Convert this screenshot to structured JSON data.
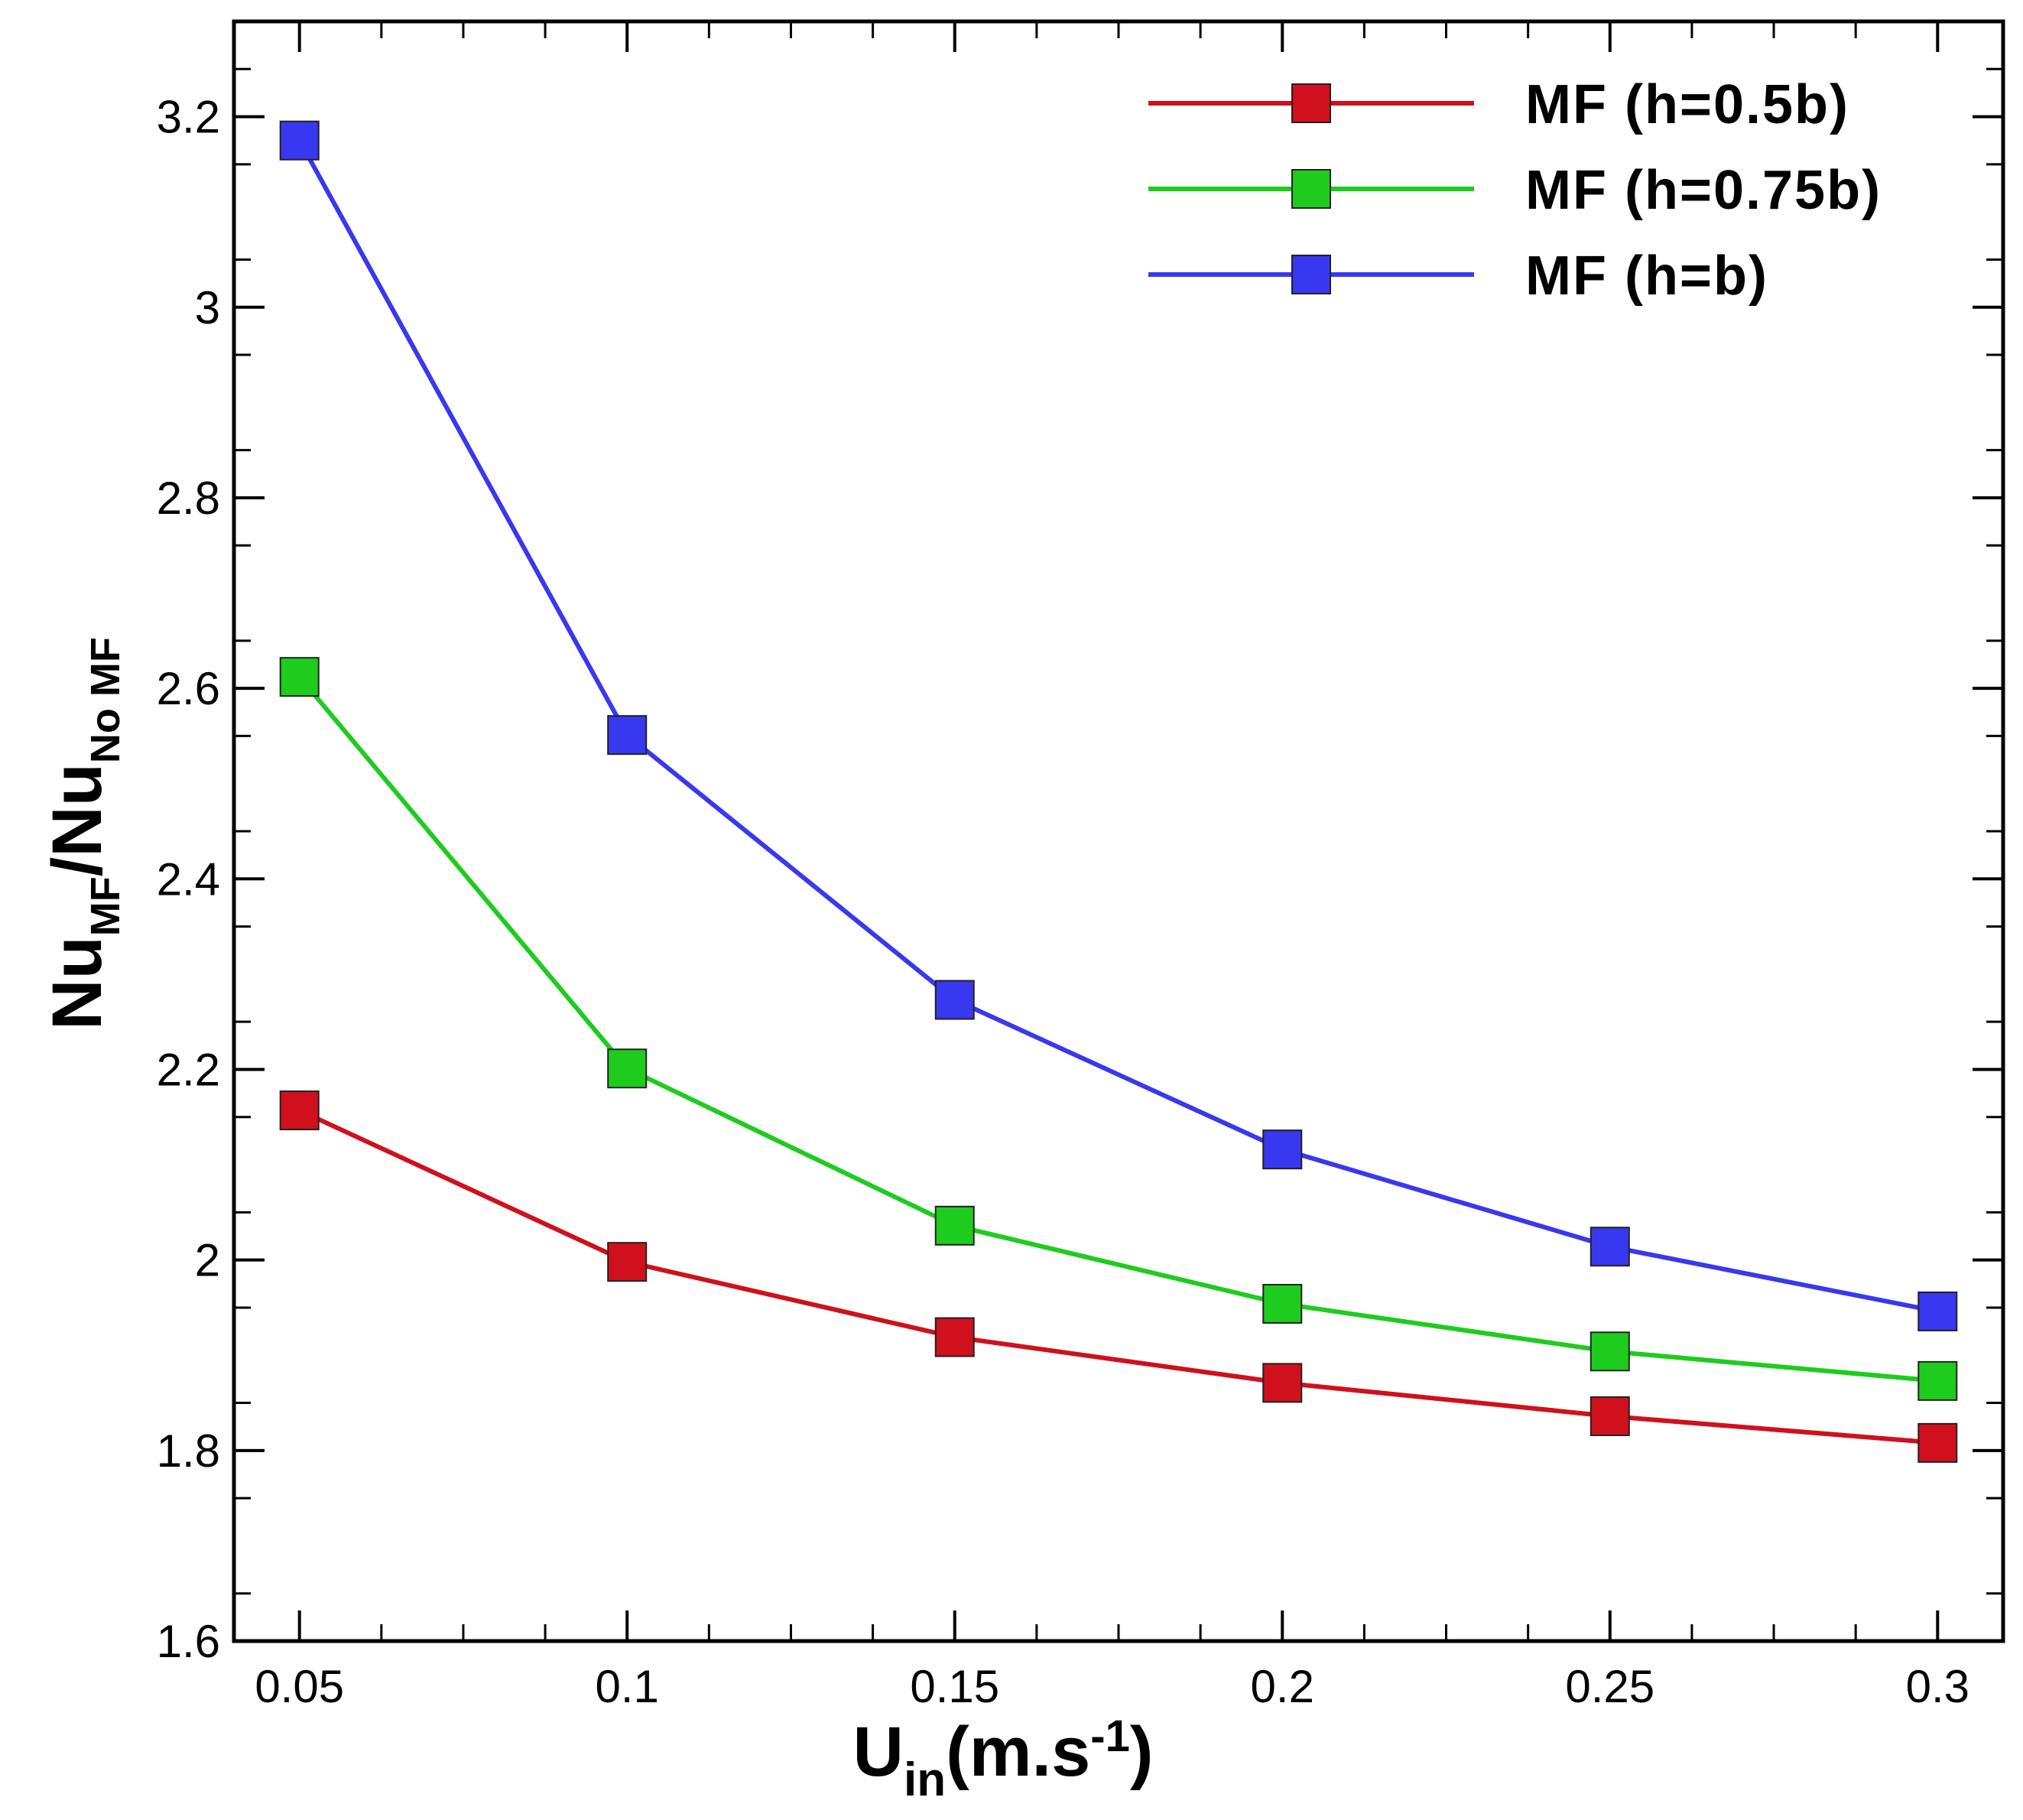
{
  "chart_data": {
    "type": "line",
    "x": [
      0.05,
      0.1,
      0.15,
      0.2,
      0.25,
      0.3
    ],
    "x_tick_labels": [
      "0.05",
      "0.1",
      "0.15",
      "0.2",
      "0.25",
      "0.3"
    ],
    "y_ticks": [
      1.6,
      1.8,
      2.0,
      2.2,
      2.4,
      2.6,
      2.8,
      3.0,
      3.2
    ],
    "y_tick_labels": [
      "1.6",
      "1.8",
      "2",
      "2.2",
      "2.4",
      "2.6",
      "2.8",
      "3",
      "3.2"
    ],
    "xlim": [
      0.04,
      0.31
    ],
    "ylim": [
      1.6,
      3.3
    ],
    "xlabel": {
      "main": "U",
      "sub": "in",
      "unit_open": "(m.s",
      "unit_sup": "-1",
      "unit_close": ")"
    },
    "ylabel": {
      "main1": "Nu",
      "sub1": "MF",
      "slash": "/",
      "main2": "Nu",
      "sub2": "No MF"
    },
    "grid": false,
    "legend_position": "top-right",
    "series": [
      {
        "name": "MF (h=0.5b)",
        "color": "#d0101c",
        "values": [
          2.157,
          1.998,
          1.919,
          1.871,
          1.836,
          1.808
        ]
      },
      {
        "name": "MF (h=0.75b)",
        "color": "#1ecc1e",
        "values": [
          2.612,
          2.201,
          2.036,
          1.954,
          1.904,
          1.873
        ]
      },
      {
        "name": "MF (h=b)",
        "color": "#3838f0",
        "values": [
          3.175,
          2.551,
          2.273,
          2.116,
          2.014,
          1.946
        ]
      }
    ]
  }
}
